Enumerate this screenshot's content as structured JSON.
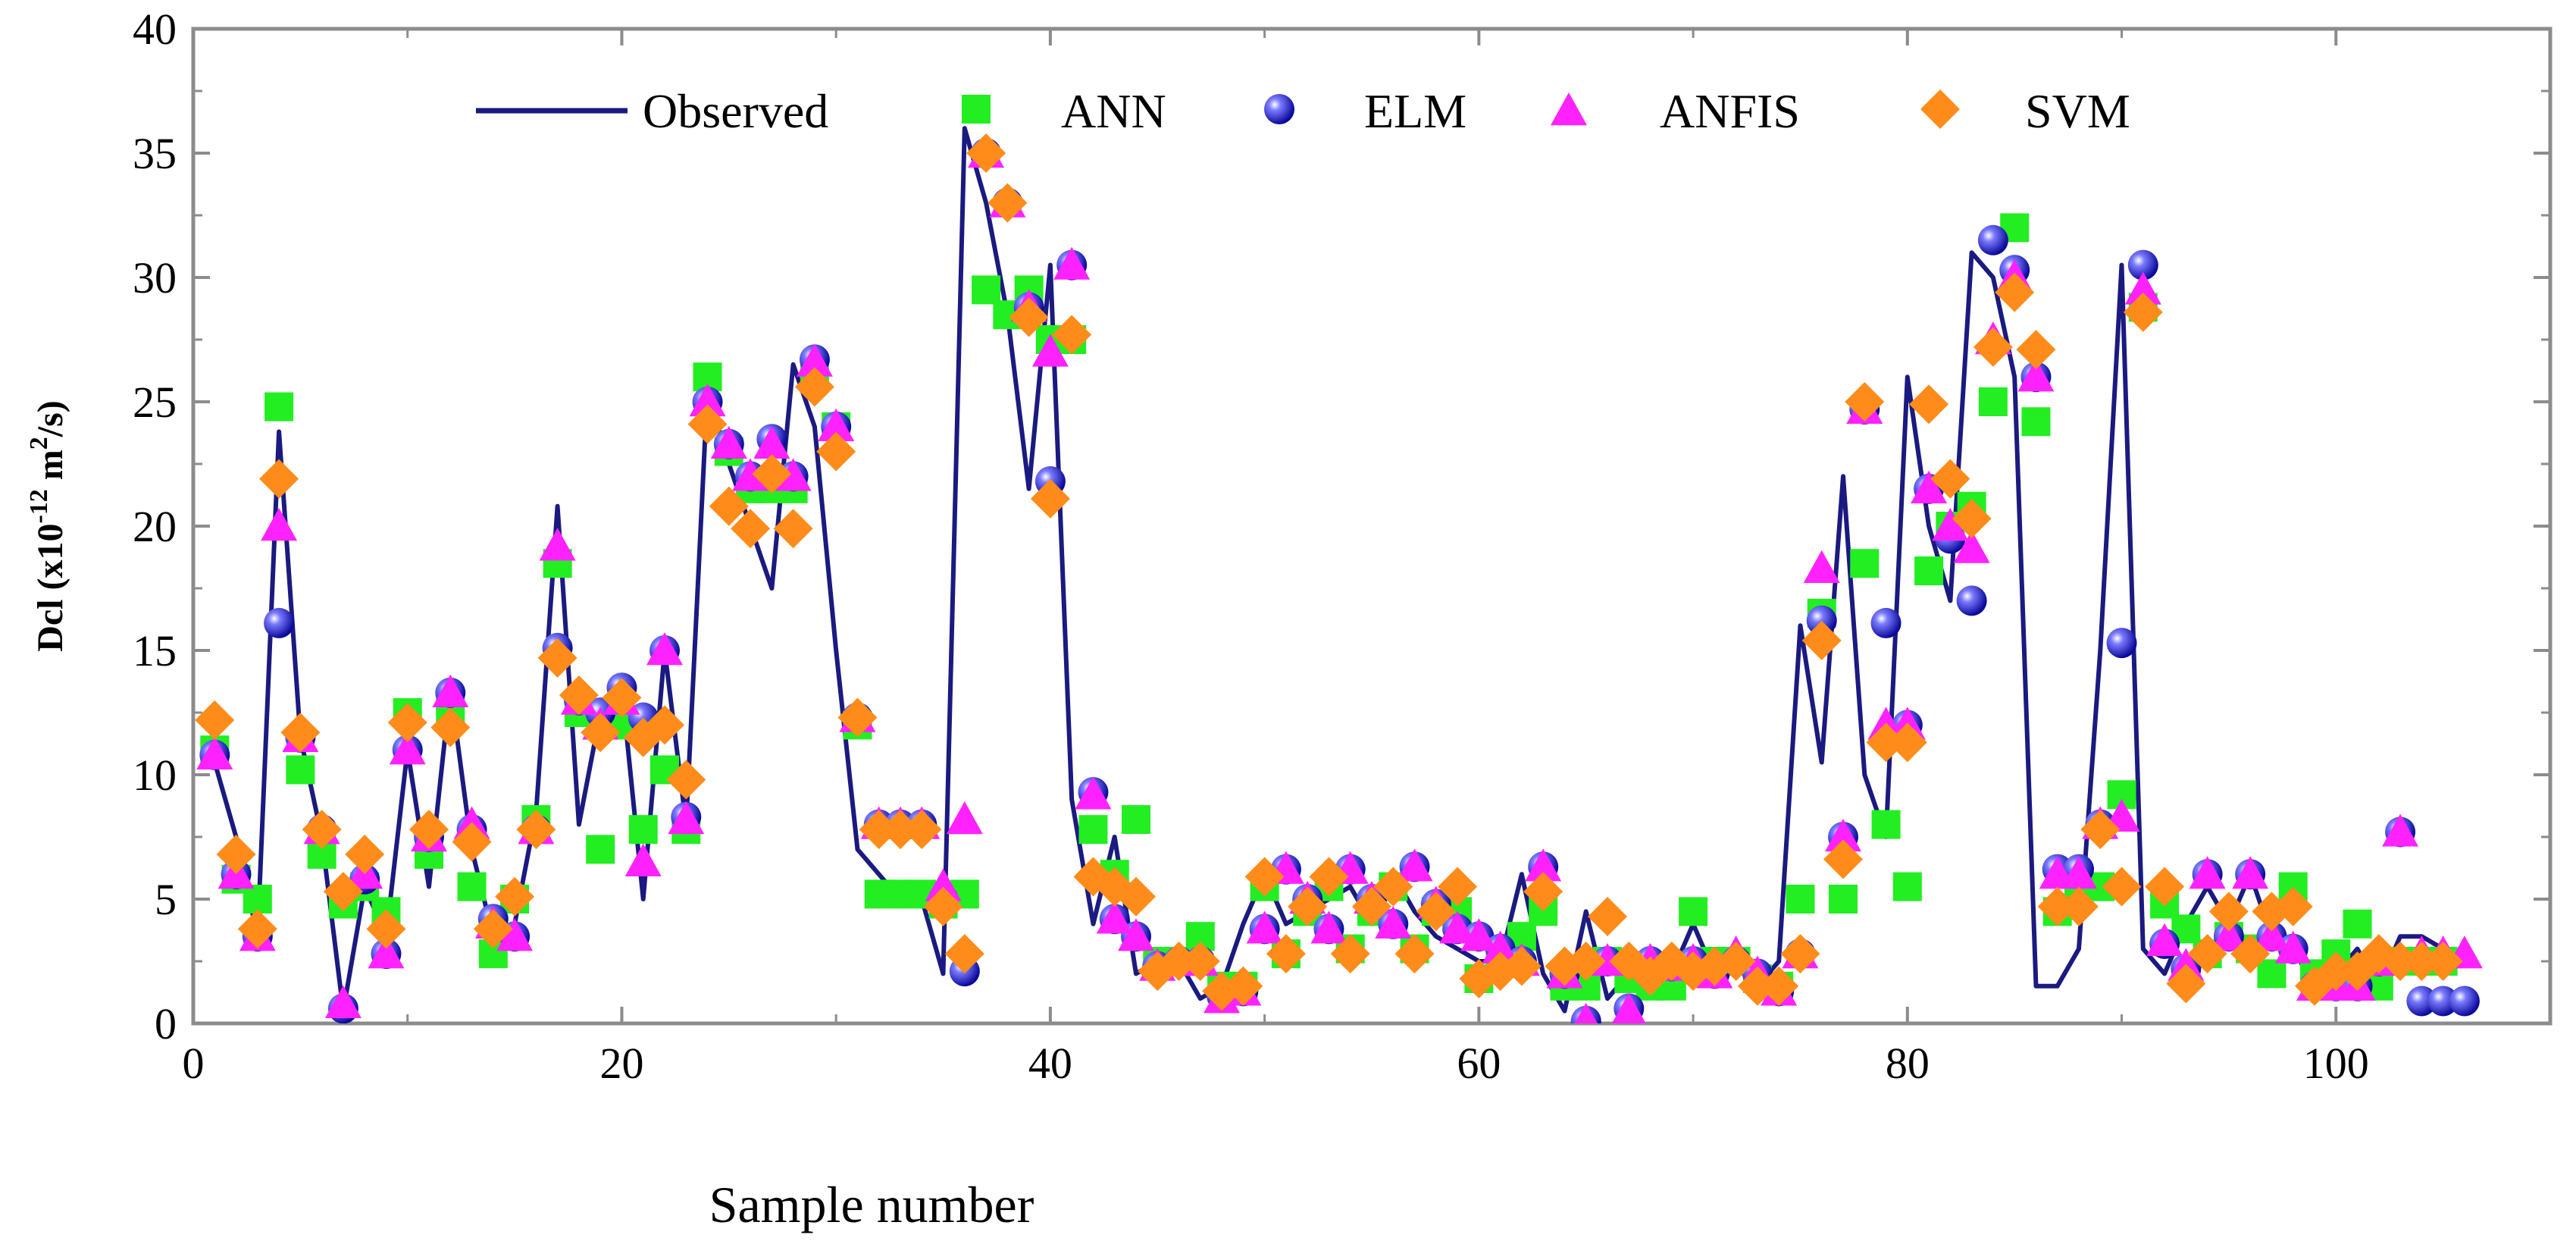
{
  "chart_data": {
    "type": "scatter",
    "xlabel": "Sample number",
    "ylabel_parts": {
      "main": "Dcl (x10",
      "exp": "-12",
      "unit": " m",
      "exp2": "2",
      "tail": "/s)"
    },
    "xlim": [
      0,
      110
    ],
    "ylim": [
      0,
      40
    ],
    "x_ticks": [
      0,
      20,
      40,
      60,
      80,
      100
    ],
    "y_ticks": [
      0,
      5,
      10,
      15,
      20,
      25,
      30,
      35,
      40
    ],
    "legend_position": "top",
    "colors": {
      "Observed": "#1a1a80",
      "ANN": "#22ee22",
      "ELM": "#2b2bd6",
      "ANFIS": "#ff22ff",
      "SVM": "#ff8c1a"
    },
    "series": [
      {
        "name": "Observed",
        "kind": "line",
        "values": [
          10.5,
          7.5,
          3.5,
          23.8,
          11.5,
          7.5,
          0.5,
          5.5,
          3.5,
          11,
          5.5,
          13.5,
          7,
          3.5,
          4,
          8.5,
          20.8,
          8,
          12.5,
          13.5,
          5,
          15,
          8,
          25.5,
          22.5,
          20,
          17.5,
          26.5,
          24,
          15,
          7,
          6,
          5,
          5,
          2,
          36,
          33,
          28.5,
          21.5,
          30.5,
          9,
          4,
          7.5,
          2,
          2.5,
          2.5,
          1,
          1.5,
          4,
          6,
          4,
          4.5,
          5,
          5.5,
          4,
          6,
          4.5,
          3.5,
          3,
          2.5,
          2.5,
          6,
          2,
          0.5,
          4.5,
          1,
          2,
          1.5,
          2,
          4,
          2,
          2.5,
          1.5,
          2.5,
          16,
          10.5,
          22,
          10,
          7.5,
          26,
          20,
          17,
          31,
          30,
          26,
          1.5,
          1.5,
          3,
          15,
          30.5,
          3,
          2,
          4,
          5.5,
          4,
          6,
          3.5,
          3,
          1.5,
          2,
          3,
          1.5,
          3.5,
          3.5,
          3
        ]
      },
      {
        "name": "ANN",
        "kind": "square",
        "values": [
          11,
          5.8,
          5,
          24.8,
          10.2,
          6.8,
          4.8,
          5.5,
          4.5,
          12.5,
          6.8,
          12.5,
          5.5,
          2.8,
          5,
          8.2,
          18.5,
          12.5,
          7,
          12,
          7.8,
          10.2,
          7.8,
          26,
          23,
          21.5,
          21.5,
          21.5,
          26,
          24,
          12,
          5.2,
          5.2,
          5.2,
          4.8,
          5.2,
          29.5,
          28.5,
          29.5,
          27.5,
          27.5,
          7.8,
          6,
          8.2,
          2.5,
          2.5,
          3.5,
          1.5,
          1.5,
          5.5,
          2.8,
          4.5,
          5.5,
          3,
          4.5,
          5.5,
          3,
          4.5,
          4.5,
          1.8,
          2.5,
          3.5,
          4.5,
          1.5,
          1.5,
          2.5,
          1.8,
          1.5,
          1.5,
          4.5,
          2.5,
          2.5,
          1.8,
          1.5,
          5,
          16.5,
          5,
          18.5,
          8,
          5.5,
          18.2,
          20,
          20.8,
          25,
          32,
          24.2,
          4.5,
          5.5,
          5.5,
          9.2,
          28.8,
          4.8,
          3.8,
          2.8,
          3.5,
          3,
          2,
          5.5,
          2,
          2.8,
          4,
          1.5,
          2.5,
          2.5,
          2.5
        ]
      },
      {
        "name": "ELM",
        "kind": "sphere",
        "values": [
          10.8,
          6,
          3.5,
          16.1,
          11.5,
          7.8,
          0.6,
          5.8,
          2.8,
          11,
          7.5,
          13.3,
          7.8,
          4.2,
          3.5,
          7.8,
          15.1,
          13,
          12.5,
          13.5,
          12.3,
          15,
          8.3,
          25,
          23.3,
          22,
          23.5,
          22,
          26.7,
          24,
          12.3,
          8,
          8,
          8,
          5,
          2.1,
          35,
          33,
          28.8,
          21.8,
          30.5,
          9.3,
          4.2,
          3.5,
          2.3,
          2.5,
          2.5,
          1.1,
          1.3,
          3.8,
          6.2,
          5,
          3.8,
          6.2,
          5,
          4,
          6.3,
          4.8,
          3.8,
          3.5,
          3,
          2.5,
          6.3,
          2,
          0.1,
          2.5,
          0.6,
          2.5,
          2.3,
          2.5,
          2,
          2.5,
          2,
          1.3,
          2.8,
          16.2,
          7.5,
          24.7,
          16.1,
          12,
          21.5,
          19.5,
          17,
          31.5,
          30.3,
          26,
          6.2,
          6.2,
          8,
          15.3,
          30.5,
          3.2,
          2.2,
          6,
          3.5,
          6,
          3.5,
          3,
          1.5,
          1.5,
          1.5,
          2.5,
          7.7,
          0.9,
          0.9,
          0.9
        ]
      },
      {
        "name": "ANFIS",
        "kind": "triangle",
        "values": [
          10.8,
          6,
          3.5,
          20,
          11.5,
          7.8,
          0.8,
          6,
          2.8,
          11,
          7.5,
          13.3,
          8,
          4,
          3.5,
          7.8,
          19.2,
          13,
          12,
          13,
          6.5,
          15,
          8.2,
          25,
          23.3,
          22,
          23.3,
          22,
          26.6,
          24,
          12.3,
          8,
          8,
          8,
          5.5,
          8.2,
          35,
          33,
          28.8,
          27,
          30.5,
          9.2,
          4.2,
          3.5,
          2.3,
          2.5,
          2.5,
          1,
          1.3,
          3.8,
          6.2,
          5,
          3.8,
          6.2,
          5,
          4,
          6.3,
          4.8,
          3.8,
          3.5,
          3,
          2.5,
          6.3,
          2,
          0.1,
          2.5,
          0.5,
          2.5,
          2.3,
          2.5,
          2,
          2.8,
          2,
          1.3,
          2.8,
          18.3,
          7.5,
          24.7,
          12,
          12,
          21.5,
          20,
          19.1,
          27.5,
          30,
          26,
          6,
          6,
          8,
          8.3,
          29.5,
          3.3,
          2.3,
          6,
          3.5,
          6,
          3.5,
          3,
          1.5,
          1.5,
          1.5,
          2.5,
          7.7,
          2.8,
          2.8,
          2.8
        ]
      },
      {
        "name": "SVM",
        "kind": "diamond",
        "values": [
          12.2,
          6.8,
          3.8,
          21.9,
          11.7,
          7.8,
          5.3,
          6.8,
          3.8,
          12.1,
          7.8,
          11.9,
          7.3,
          3.8,
          5.1,
          7.8,
          14.7,
          13.2,
          11.7,
          13.1,
          11.5,
          12,
          9.8,
          24.1,
          20.8,
          19.9,
          22.1,
          19.9,
          25.6,
          23,
          12.3,
          7.8,
          7.8,
          7.8,
          4.7,
          2.8,
          35,
          33,
          28.4,
          21.1,
          27.7,
          5.9,
          5.5,
          5.1,
          2.1,
          2.5,
          2.5,
          1.3,
          1.5,
          5.9,
          2.8,
          4.7,
          5.9,
          2.8,
          4.7,
          5.5,
          2.8,
          4.5,
          5.5,
          1.8,
          2.1,
          2.3,
          5.3,
          2.3,
          2.5,
          4.3,
          2.5,
          1.9,
          2.5,
          2.1,
          2.3,
          2.5,
          1.5,
          1.5,
          2.8,
          15.4,
          6.6,
          25,
          11.3,
          11.3,
          24.9,
          21.9,
          20.3,
          27.2,
          29.4,
          27.1,
          4.7,
          4.7,
          7.8,
          5.5,
          28.6,
          5.5,
          1.6,
          2.8,
          4.5,
          2.8,
          4.5,
          4.7,
          1.5,
          2.1,
          2.1,
          2.8,
          2.5,
          2.5,
          2.5
        ]
      }
    ]
  }
}
